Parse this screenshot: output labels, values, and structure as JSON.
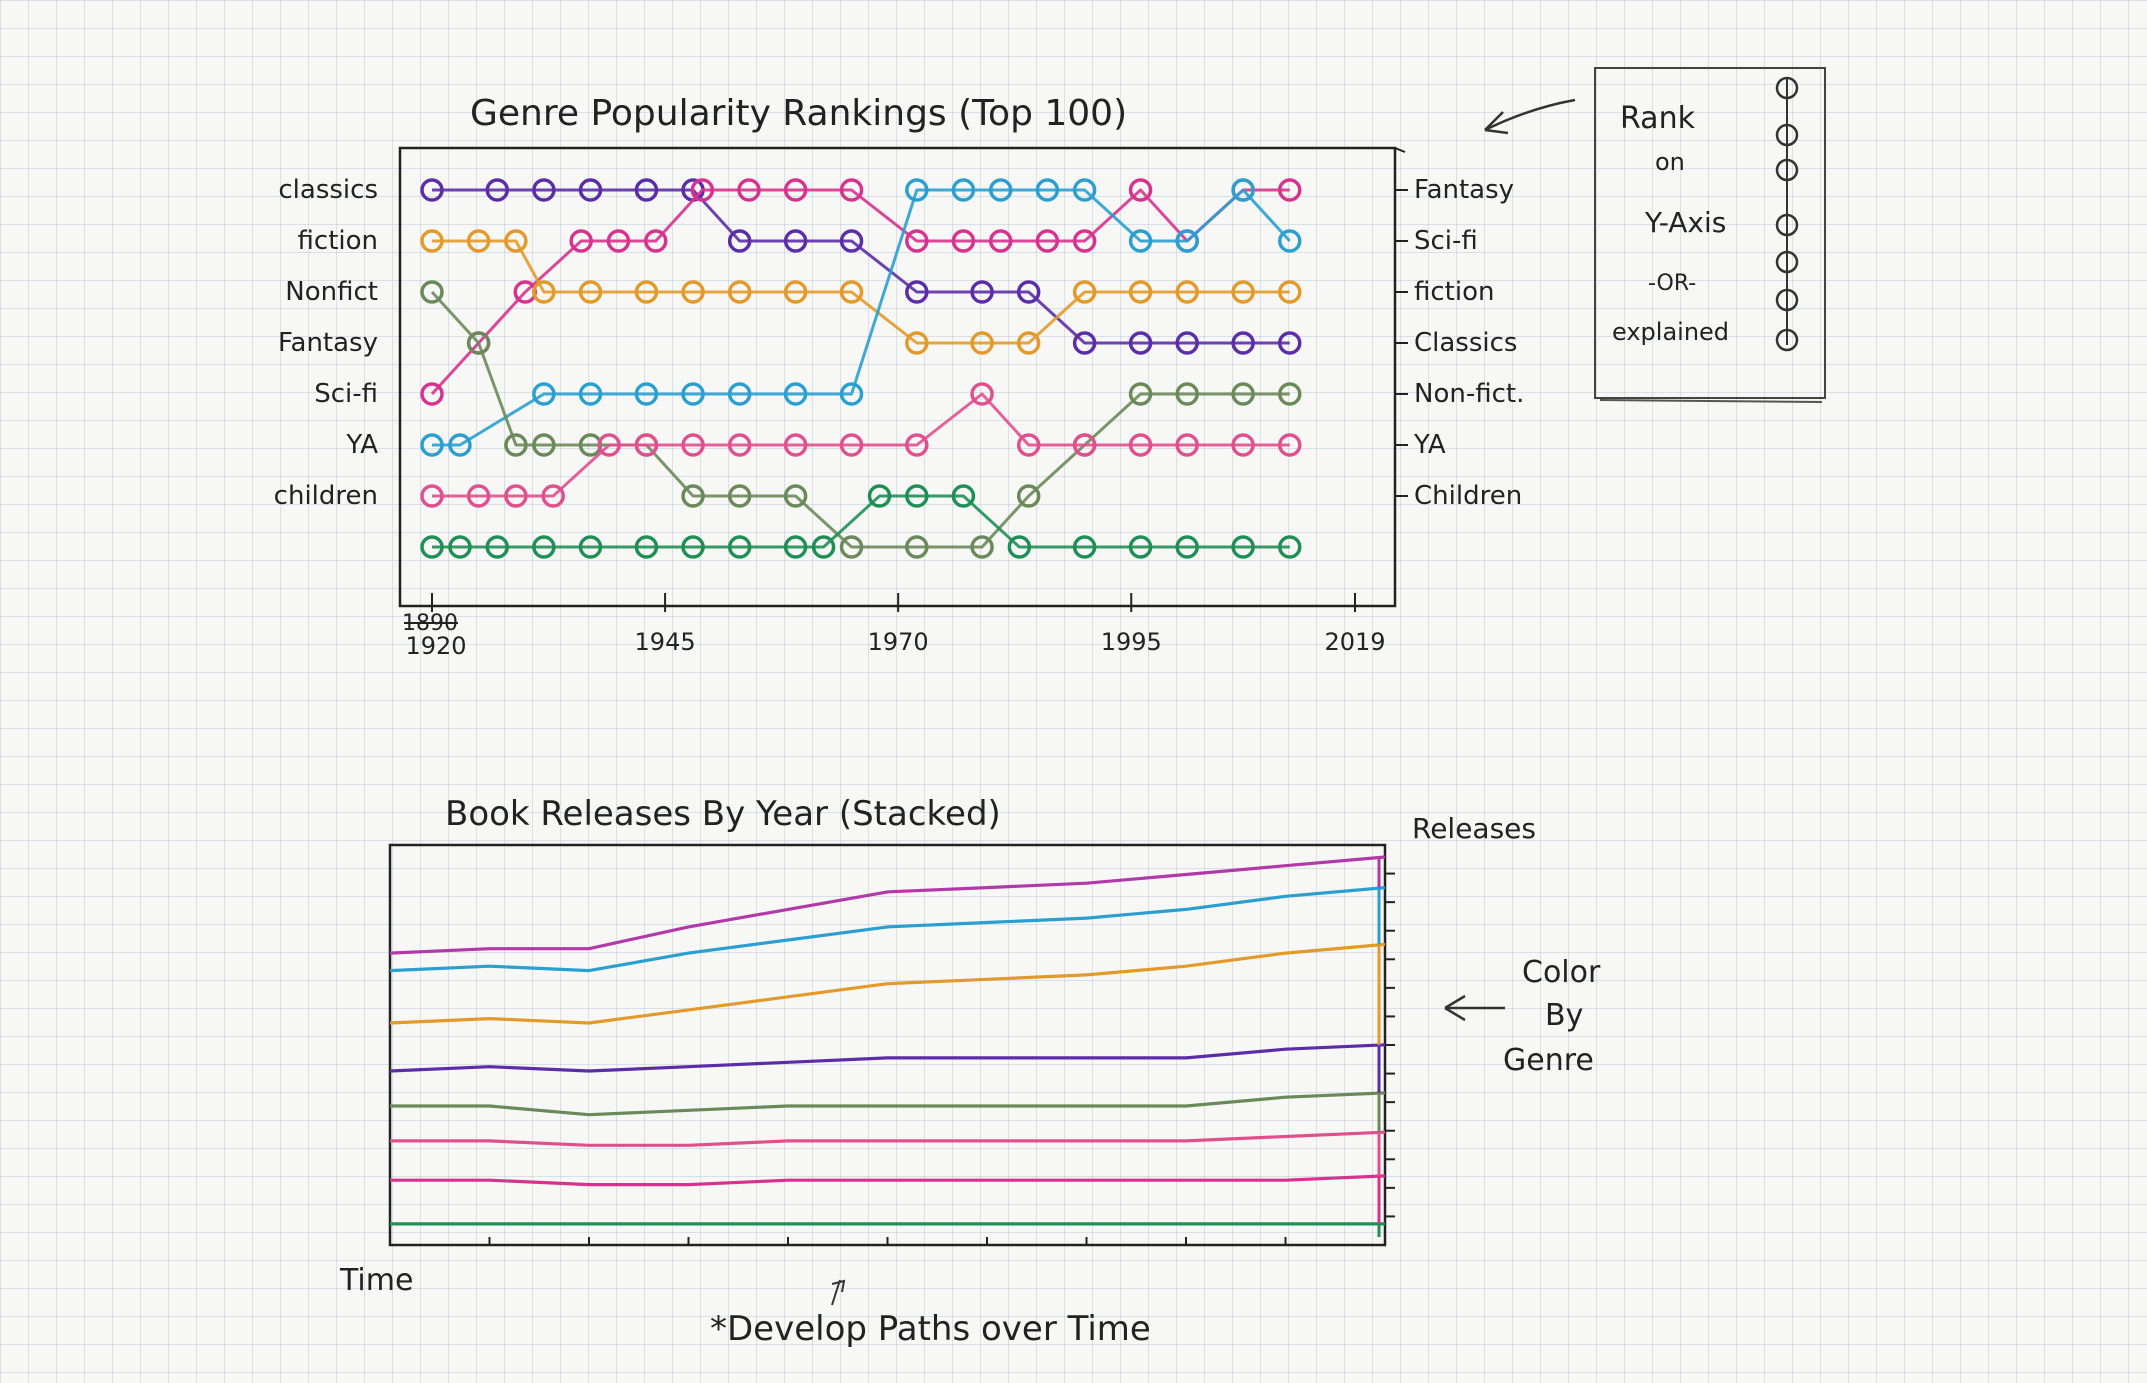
{
  "chart_data": [
    {
      "type": "line",
      "title": "Genre Popularity Rankings (Top 100)",
      "y_encoding": "rank",
      "left_labels": [
        "classics",
        "fiction",
        "Nonfict",
        "Fantasy",
        "Sci-fi",
        "YA",
        "children"
      ],
      "right_labels": [
        "Fantasy",
        "Sci-fi",
        "fiction",
        "Classics",
        "Non-fict.",
        "YA",
        "Children"
      ],
      "x_ticks": [
        {
          "label": "1920",
          "struck": "1890",
          "year": 1920
        },
        {
          "label": "1945",
          "year": 1945
        },
        {
          "label": "1970",
          "year": 1970
        },
        {
          "label": "1995",
          "year": 1995
        },
        {
          "label": "2019",
          "year": 2019
        }
      ],
      "xlim": [
        1920,
        2019
      ],
      "ylim": [
        1,
        8
      ],
      "series": [
        {
          "color": "#5b2da8",
          "x": [
            1920,
            1927,
            1932,
            1937,
            1943,
            1948,
            1953,
            1959,
            1965,
            1972,
            1979,
            1984,
            1990,
            1996,
            2001,
            2007,
            2012
          ],
          "y": [
            1,
            1,
            1,
            1,
            1,
            1,
            2,
            2,
            2,
            3,
            3,
            3,
            4,
            4,
            4,
            4,
            4
          ]
        },
        {
          "color": "#d8328f",
          "x": [
            1920,
            1925,
            1930,
            1936,
            1940,
            1944,
            1949,
            1954,
            1959,
            1965,
            1972,
            1977,
            1981,
            1986,
            1990,
            1996,
            2001,
            2007,
            2012
          ],
          "y": [
            5,
            4,
            3,
            2,
            2,
            2,
            1,
            1,
            1,
            1,
            2,
            2,
            2,
            2,
            2,
            1,
            2,
            1,
            1
          ]
        },
        {
          "color": "#e39a2a",
          "x": [
            1920,
            1925,
            1929,
            1932,
            1937,
            1943,
            1948,
            1953,
            1959,
            1965,
            1972,
            1979,
            1984,
            1990,
            1996,
            2001,
            2007,
            2012
          ],
          "y": [
            2,
            2,
            2,
            3,
            3,
            3,
            3,
            3,
            3,
            3,
            4,
            4,
            4,
            3,
            3,
            3,
            3,
            3
          ]
        },
        {
          "color": "#2a9fd0",
          "x": [
            1920,
            1923,
            1932,
            1937,
            1943,
            1948,
            1953,
            1959,
            1965,
            1972,
            1977,
            1981,
            1986,
            1990,
            1996,
            2001,
            2007,
            2012
          ],
          "y": [
            6,
            6,
            5,
            5,
            5,
            5,
            5,
            5,
            5,
            1,
            1,
            1,
            1,
            1,
            2,
            2,
            1,
            2
          ]
        },
        {
          "color": "#6a8a5a",
          "x": [
            1920,
            1925,
            1929,
            1932,
            1937,
            1943,
            1948,
            1953,
            1959,
            1965,
            1972,
            1979,
            1984,
            1990,
            1996,
            2001,
            2007,
            2012
          ],
          "y": [
            3,
            4,
            6,
            6,
            6,
            6,
            7,
            7,
            7,
            8,
            8,
            8,
            7,
            6,
            5,
            5,
            5,
            5
          ]
        },
        {
          "color": "#e0508f",
          "x": [
            1920,
            1925,
            1929,
            1933,
            1939,
            1943,
            1948,
            1953,
            1959,
            1965,
            1972,
            1979,
            1984,
            1990,
            1996,
            2001,
            2007,
            2012
          ],
          "y": [
            7,
            7,
            7,
            7,
            6,
            6,
            6,
            6,
            6,
            6,
            6,
            5,
            6,
            6,
            6,
            6,
            6,
            6
          ]
        },
        {
          "color": "#1f8f55",
          "x": [
            1920,
            1923,
            1927,
            1932,
            1937,
            1943,
            1948,
            1953,
            1959,
            1962,
            1968,
            1972,
            1977,
            1983,
            1990,
            1996,
            2001,
            2007,
            2012
          ],
          "y": [
            8,
            8,
            8,
            8,
            8,
            8,
            8,
            8,
            8,
            8,
            7,
            7,
            7,
            8,
            8,
            8,
            8,
            8,
            8
          ]
        }
      ]
    },
    {
      "type": "area",
      "stacked": true,
      "title": "Book Releases By Year (Stacked)",
      "xlabel": "Time",
      "ylabel": "Releases",
      "x": [
        0,
        1,
        2,
        3,
        4,
        5,
        6,
        7,
        8,
        9,
        10
      ],
      "series": [
        {
          "color": "#1f8f55",
          "values": [
            3,
            3,
            3,
            3,
            3,
            3,
            3,
            3,
            3,
            3,
            3
          ]
        },
        {
          "color": "#d8328f",
          "values": [
            10,
            10,
            9,
            9,
            10,
            10,
            10,
            10,
            10,
            10,
            11
          ]
        },
        {
          "color": "#e0508f",
          "values": [
            9,
            9,
            9,
            9,
            9,
            9,
            9,
            9,
            9,
            10,
            10
          ]
        },
        {
          "color": "#6a8a5a",
          "values": [
            8,
            8,
            7,
            8,
            8,
            8,
            8,
            8,
            8,
            9,
            9
          ]
        },
        {
          "color": "#5b2da8",
          "values": [
            8,
            9,
            10,
            10,
            10,
            11,
            11,
            11,
            11,
            11,
            11
          ]
        },
        {
          "color": "#e39a2a",
          "values": [
            11,
            11,
            11,
            13,
            15,
            17,
            18,
            19,
            21,
            22,
            23
          ]
        },
        {
          "color": "#2a9fd0",
          "values": [
            12,
            12,
            12,
            13,
            13,
            13,
            13,
            13,
            13,
            13,
            13
          ]
        },
        {
          "color": "#b23aa8",
          "values": [
            4,
            4,
            5,
            6,
            7,
            8,
            8,
            8,
            8,
            7,
            7
          ]
        }
      ]
    }
  ],
  "notes": {
    "rank_note": [
      "Rank",
      "on",
      "Y-Axis",
      "-OR-",
      "explained"
    ],
    "color_note": [
      "Color",
      "By",
      "Genre"
    ],
    "footer": "*Develop  Paths  over  Time"
  }
}
